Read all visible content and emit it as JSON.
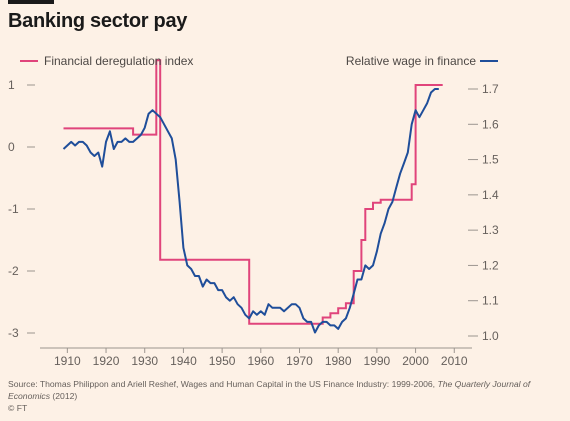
{
  "title": "Banking sector pay",
  "source_prefix": "Source: Thomas Philippon and Ariell Reshef, Wages and Human Capital in the US Finance Industry: 1999-2006, ",
  "source_journal": "The Quarterly Journal of Economics",
  "source_year": " (2012)",
  "copyright": "© FT",
  "colors": {
    "deregulation": "#e0447b",
    "wage": "#1f4e9a",
    "background": "#fdf1e6"
  },
  "chart_data": {
    "type": "line",
    "xlim": [
      1905,
      2012
    ],
    "x_ticks": [
      "1910",
      "1920",
      "1930",
      "1940",
      "1950",
      "1960",
      "1970",
      "1980",
      "1990",
      "2000",
      "2010"
    ],
    "left_axis": {
      "ylim": [
        -3,
        1
      ],
      "ticks": [
        "1",
        "0",
        "-1",
        "-2",
        "-3"
      ]
    },
    "right_axis": {
      "ylim": [
        1.0,
        1.7
      ],
      "ticks": [
        "1.7",
        "1.6",
        "1.5",
        "1.4",
        "1.3",
        "1.2",
        "1.1",
        "1.0"
      ]
    },
    "grid": false,
    "legend": "top",
    "series": [
      {
        "name": "Financial deregulation index",
        "axis": "left",
        "x": [
          1909,
          1927,
          1927,
          1933,
          1933,
          1934,
          1934,
          1957,
          1957,
          1976,
          1976,
          1978,
          1978,
          1980,
          1980,
          1982,
          1982,
          1984,
          1984,
          1986,
          1986,
          1987,
          1987,
          1989,
          1989,
          1991,
          1991,
          1999,
          1999,
          2000,
          2000,
          2002,
          2002,
          2007
        ],
        "y": [
          0.3,
          0.3,
          0.2,
          0.2,
          1.4,
          1.4,
          -1.82,
          -1.82,
          -2.85,
          -2.85,
          -2.75,
          -2.75,
          -2.68,
          -2.68,
          -2.6,
          -2.6,
          -2.52,
          -2.52,
          -2.0,
          -2.0,
          -1.5,
          -1.5,
          -1.0,
          -1.0,
          -0.9,
          -0.9,
          -0.85,
          -0.85,
          -0.6,
          -0.6,
          1.0,
          1.0,
          1.0,
          1.0
        ]
      },
      {
        "name": "Relative wage in finance",
        "axis": "right",
        "x": [
          1909,
          1910,
          1911,
          1912,
          1913,
          1914,
          1915,
          1916,
          1917,
          1918,
          1919,
          1920,
          1921,
          1922,
          1923,
          1924,
          1925,
          1926,
          1927,
          1928,
          1929,
          1930,
          1931,
          1932,
          1933,
          1934,
          1935,
          1936,
          1937,
          1938,
          1939,
          1940,
          1941,
          1942,
          1943,
          1944,
          1945,
          1946,
          1947,
          1948,
          1949,
          1950,
          1951,
          1952,
          1953,
          1954,
          1955,
          1956,
          1957,
          1958,
          1959,
          1960,
          1961,
          1962,
          1963,
          1964,
          1965,
          1966,
          1967,
          1968,
          1969,
          1970,
          1971,
          1972,
          1973,
          1974,
          1975,
          1976,
          1977,
          1978,
          1979,
          1980,
          1981,
          1982,
          1983,
          1984,
          1985,
          1986,
          1987,
          1988,
          1989,
          1990,
          1991,
          1992,
          1993,
          1994,
          1995,
          1996,
          1997,
          1998,
          1999,
          2000,
          2001,
          2002,
          2003,
          2004,
          2005,
          2006
        ],
        "y": [
          1.53,
          1.54,
          1.55,
          1.54,
          1.55,
          1.55,
          1.54,
          1.52,
          1.51,
          1.52,
          1.48,
          1.55,
          1.58,
          1.53,
          1.55,
          1.55,
          1.56,
          1.55,
          1.55,
          1.56,
          1.57,
          1.59,
          1.63,
          1.64,
          1.63,
          1.62,
          1.6,
          1.58,
          1.56,
          1.5,
          1.38,
          1.25,
          1.2,
          1.19,
          1.17,
          1.17,
          1.14,
          1.16,
          1.15,
          1.15,
          1.13,
          1.13,
          1.11,
          1.1,
          1.11,
          1.09,
          1.08,
          1.06,
          1.05,
          1.07,
          1.06,
          1.07,
          1.06,
          1.09,
          1.08,
          1.08,
          1.08,
          1.07,
          1.08,
          1.09,
          1.09,
          1.08,
          1.05,
          1.04,
          1.04,
          1.01,
          1.03,
          1.04,
          1.04,
          1.03,
          1.03,
          1.02,
          1.04,
          1.05,
          1.08,
          1.12,
          1.16,
          1.16,
          1.2,
          1.19,
          1.2,
          1.24,
          1.29,
          1.32,
          1.36,
          1.38,
          1.42,
          1.46,
          1.49,
          1.52,
          1.6,
          1.64,
          1.62,
          1.64,
          1.66,
          1.69,
          1.7,
          1.7
        ]
      }
    ]
  }
}
